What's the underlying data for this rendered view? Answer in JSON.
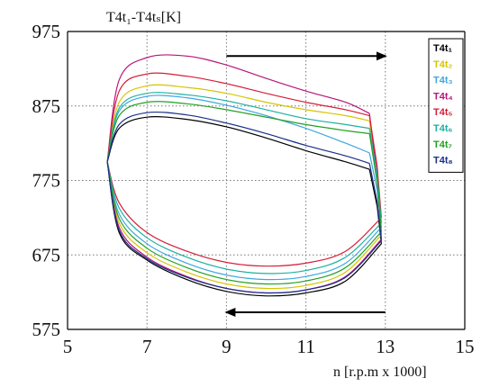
{
  "chart_data": {
    "type": "line",
    "ylabel": "T4t₁-T4tₛ[K]",
    "xlabel": "n [r.p.m x 1000]",
    "xlim": [
      5,
      15
    ],
    "ylim": [
      575,
      975
    ],
    "xticks": [
      "5",
      "7",
      "9",
      "11",
      "13",
      "15"
    ],
    "yticks": [
      "975",
      "875",
      "775",
      "675",
      "575"
    ],
    "grid": true,
    "grid_style": "dotted",
    "legend_position": "top-right",
    "annotations": [
      {
        "type": "arrow",
        "direction": "right",
        "from": [
          9,
          942
        ],
        "to": [
          13,
          942
        ]
      },
      {
        "type": "arrow",
        "direction": "left",
        "from": [
          13,
          598
        ],
        "to": [
          9,
          598
        ]
      }
    ],
    "series": [
      {
        "name": "T4t₁",
        "color": "#000000",
        "upper": {
          "x": [
            6.0,
            6.3,
            7.0,
            8.0,
            9.0,
            10.0,
            11.0,
            12.0,
            12.6
          ],
          "y": [
            800,
            845,
            860,
            857,
            847,
            832,
            815,
            800,
            790
          ]
        },
        "lower": {
          "x": [
            6.0,
            6.3,
            7.0,
            8.0,
            9.0,
            10.0,
            11.0,
            12.0,
            12.9
          ],
          "y": [
            800,
            705,
            668,
            642,
            626,
            620,
            624,
            640,
            690
          ]
        }
      },
      {
        "name": "T4t₂",
        "color": "#d6c400",
        "upper": {
          "x": [
            6.0,
            6.3,
            7.0,
            8.0,
            9.0,
            10.0,
            11.0,
            12.0,
            12.6
          ],
          "y": [
            800,
            880,
            902,
            900,
            892,
            880,
            870,
            862,
            855
          ]
        },
        "lower": {
          "x": [
            6.0,
            6.3,
            7.0,
            8.0,
            9.0,
            10.0,
            11.0,
            12.0,
            12.9
          ],
          "y": [
            800,
            718,
            678,
            652,
            636,
            630,
            634,
            652,
            702
          ]
        }
      },
      {
        "name": "T4t₃",
        "color": "#3fa6e0",
        "upper": {
          "x": [
            6.0,
            6.3,
            7.0,
            8.0,
            9.0,
            10.0,
            11.0,
            12.0,
            12.6
          ],
          "y": [
            800,
            868,
            888,
            886,
            876,
            862,
            845,
            825,
            812
          ]
        },
        "lower": {
          "x": [
            6.0,
            6.3,
            7.0,
            8.0,
            9.0,
            10.0,
            11.0,
            12.0,
            12.9
          ],
          "y": [
            800,
            730,
            690,
            664,
            648,
            642,
            646,
            664,
            712
          ]
        }
      },
      {
        "name": "T4t₄",
        "color": "#b8157a",
        "upper": {
          "x": [
            6.0,
            6.3,
            7.0,
            8.0,
            9.0,
            10.0,
            11.0,
            12.0,
            12.6
          ],
          "y": [
            800,
            910,
            940,
            942,
            930,
            912,
            895,
            880,
            865
          ]
        },
        "lower": {
          "x": [
            6.0,
            6.3,
            7.0,
            8.0,
            9.0,
            10.0,
            11.0,
            12.0,
            12.9
          ],
          "y": [
            800,
            712,
            672,
            646,
            630,
            624,
            628,
            646,
            696
          ]
        }
      },
      {
        "name": "T4t₅",
        "color": "#d61e3a",
        "upper": {
          "x": [
            6.0,
            6.3,
            7.0,
            8.0,
            9.0,
            10.0,
            11.0,
            12.0,
            12.6
          ],
          "y": [
            800,
            895,
            918,
            915,
            905,
            892,
            880,
            870,
            862
          ]
        },
        "lower": {
          "x": [
            6.0,
            6.3,
            7.0,
            8.0,
            9.0,
            10.0,
            11.0,
            12.0,
            12.9
          ],
          "y": [
            800,
            745,
            705,
            680,
            665,
            660,
            664,
            680,
            725
          ]
        }
      },
      {
        "name": "T4t₆",
        "color": "#1fb0a0",
        "upper": {
          "x": [
            6.0,
            6.3,
            7.0,
            8.0,
            9.0,
            10.0,
            11.0,
            12.0,
            12.6
          ],
          "y": [
            800,
            872,
            892,
            890,
            882,
            870,
            858,
            850,
            845
          ]
        },
        "lower": {
          "x": [
            6.0,
            6.3,
            7.0,
            8.0,
            9.0,
            10.0,
            11.0,
            12.0,
            12.9
          ],
          "y": [
            800,
            738,
            698,
            672,
            656,
            650,
            654,
            672,
            718
          ]
        }
      },
      {
        "name": "T4t₇",
        "color": "#22a022",
        "upper": {
          "x": [
            6.0,
            6.3,
            7.0,
            8.0,
            9.0,
            10.0,
            11.0,
            12.0,
            12.6
          ],
          "y": [
            800,
            862,
            880,
            878,
            870,
            860,
            850,
            842,
            838
          ]
        },
        "lower": {
          "x": [
            6.0,
            6.3,
            7.0,
            8.0,
            9.0,
            10.0,
            11.0,
            12.0,
            12.9
          ],
          "y": [
            800,
            724,
            684,
            658,
            642,
            636,
            640,
            658,
            706
          ]
        }
      },
      {
        "name": "T4t₈",
        "color": "#1a2f8a",
        "upper": {
          "x": [
            6.0,
            6.3,
            7.0,
            8.0,
            9.0,
            10.0,
            11.0,
            12.0,
            12.6
          ],
          "y": [
            800,
            850,
            866,
            863,
            852,
            838,
            822,
            808,
            798
          ]
        },
        "lower": {
          "x": [
            6.0,
            6.3,
            7.0,
            8.0,
            9.0,
            10.0,
            11.0,
            12.0,
            12.9
          ],
          "y": [
            800,
            708,
            670,
            645,
            630,
            624,
            628,
            645,
            694
          ]
        }
      }
    ]
  }
}
